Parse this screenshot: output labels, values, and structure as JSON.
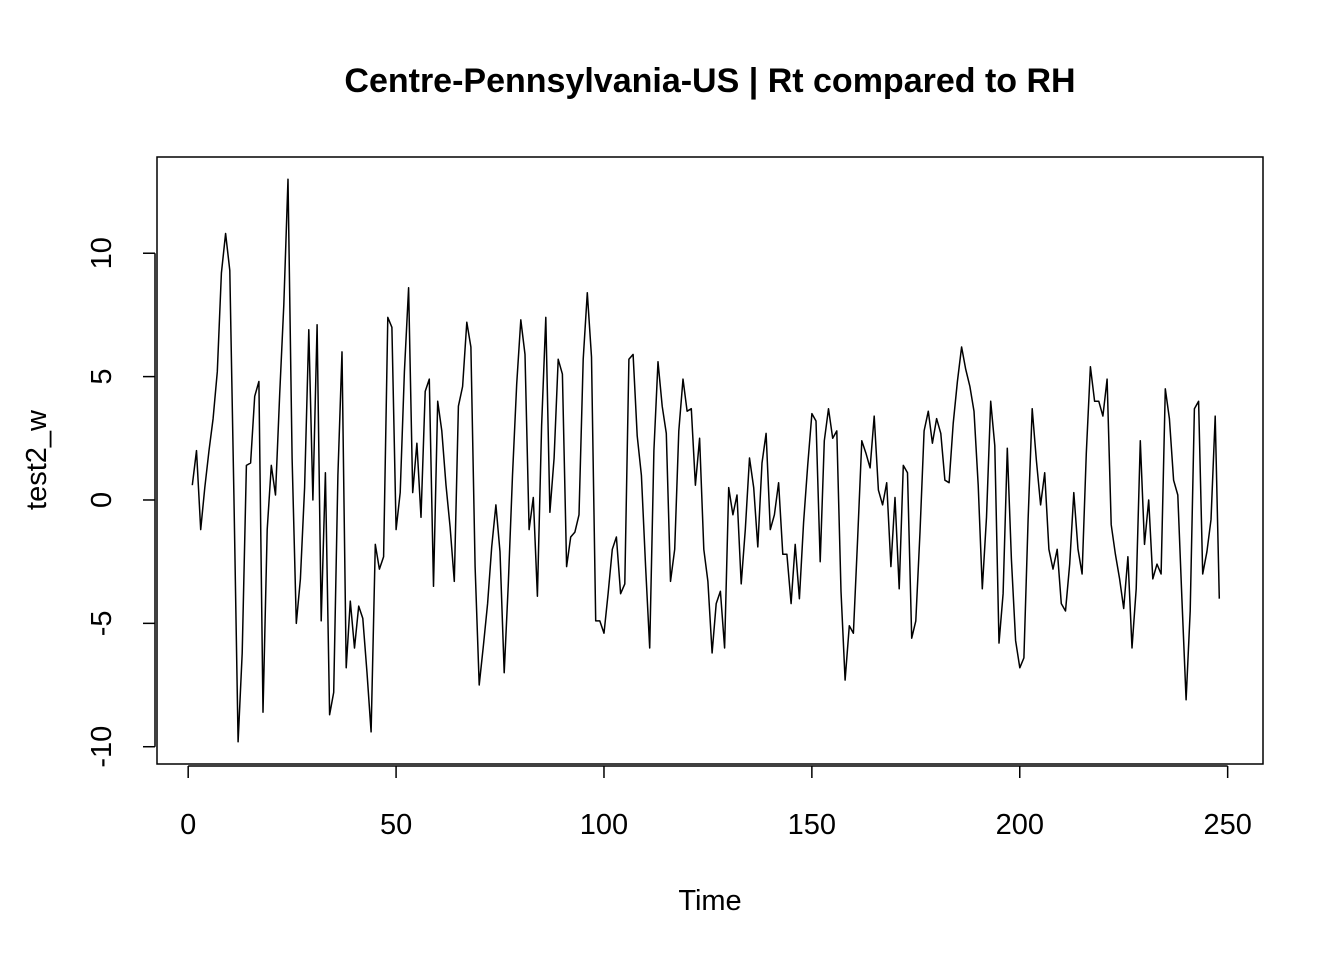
{
  "chart_data": {
    "type": "line",
    "title": "Centre-Pennsylvania-US | Rt compared to RH",
    "xlabel": "Time",
    "ylabel": "test2_w",
    "xlim": [
      -7.5,
      258.5
    ],
    "ylim": [
      -10.7,
      13.9
    ],
    "xticks": [
      0,
      50,
      100,
      150,
      200,
      250
    ],
    "yticks": [
      -10,
      -5,
      0,
      5,
      10
    ],
    "grid": false,
    "legend": "none",
    "line_color": "#000000",
    "series": [
      {
        "x_start": 1,
        "values": [
          0.6,
          2.0,
          -1.2,
          0.5,
          2.0,
          3.3,
          5.2,
          9.2,
          10.8,
          9.3,
          0.2,
          -9.8,
          -6.2,
          1.4,
          1.5,
          4.2,
          4.8,
          -8.6,
          -1.2,
          1.4,
          0.2,
          4.3,
          7.9,
          13.0,
          1.7,
          -5.0,
          -3.2,
          0.5,
          6.9,
          0.0,
          7.1,
          -4.9,
          1.1,
          -8.7,
          -7.8,
          1.0,
          6.0,
          -6.8,
          -4.1,
          -6.0,
          -4.3,
          -4.8,
          -7.0,
          -9.4,
          -1.8,
          -2.8,
          -2.3,
          7.4,
          7.0,
          -1.2,
          0.3,
          5.2,
          8.6,
          0.3,
          2.3,
          -0.7,
          4.4,
          4.9,
          -3.5,
          4.0,
          2.8,
          0.6,
          -1.1,
          -3.3,
          3.8,
          4.6,
          7.2,
          6.2,
          -2.7,
          -7.5,
          -5.9,
          -4.2,
          -1.9,
          -0.2,
          -2.1,
          -7.0,
          -3.4,
          1.0,
          4.7,
          7.3,
          5.9,
          -1.2,
          0.1,
          -3.9,
          3.0,
          7.4,
          -0.5,
          1.7,
          5.7,
          5.1,
          -2.7,
          -1.5,
          -1.3,
          -0.6,
          5.7,
          8.4,
          5.8,
          -4.9,
          -4.9,
          -5.4,
          -3.8,
          -2.0,
          -1.5,
          -3.8,
          -3.4,
          5.7,
          5.9,
          2.6,
          1.0,
          -2.7,
          -6.0,
          2.0,
          5.6,
          3.8,
          2.7,
          -3.3,
          -2.0,
          2.8,
          4.9,
          3.6,
          3.7,
          0.6,
          2.5,
          -2.0,
          -3.3,
          -6.2,
          -4.2,
          -3.7,
          -6.0,
          0.5,
          -0.6,
          0.2,
          -3.4,
          -1.2,
          1.7,
          0.5,
          -1.9,
          1.5,
          2.7,
          -1.2,
          -0.6,
          0.7,
          -2.2,
          -2.2,
          -4.2,
          -1.8,
          -4.0,
          -0.9,
          1.4,
          3.5,
          3.2,
          -2.5,
          2.4,
          3.7,
          2.5,
          2.8,
          -3.7,
          -7.3,
          -5.1,
          -5.4,
          -1.6,
          2.4,
          1.9,
          1.3,
          3.4,
          0.4,
          -0.2,
          0.7,
          -2.7,
          0.1,
          -3.6,
          1.4,
          1.1,
          -5.6,
          -4.9,
          -1.3,
          2.8,
          3.6,
          2.3,
          3.3,
          2.7,
          0.8,
          0.7,
          3.1,
          4.8,
          6.2,
          5.3,
          4.6,
          3.6,
          0.6,
          -3.6,
          -0.7,
          4.0,
          2.2,
          -5.8,
          -3.8,
          2.1,
          -2.4,
          -5.7,
          -6.8,
          -6.4,
          -0.8,
          3.7,
          1.6,
          -0.2,
          1.1,
          -2.0,
          -2.8,
          -2.0,
          -4.2,
          -4.5,
          -2.6,
          0.3,
          -2.0,
          -3.0,
          1.9,
          5.4,
          4.0,
          4.0,
          3.4,
          4.9,
          -1.0,
          -2.2,
          -3.2,
          -4.4,
          -2.3,
          -6.0,
          -3.6,
          2.4,
          -1.8,
          0.0,
          -3.2,
          -2.6,
          -3.0,
          4.5,
          3.3,
          0.8,
          0.2,
          -4.0,
          -8.1,
          -4.5,
          3.7,
          4.0,
          -3.0,
          -2.1,
          -0.8,
          3.4,
          -4.0
        ]
      }
    ]
  }
}
